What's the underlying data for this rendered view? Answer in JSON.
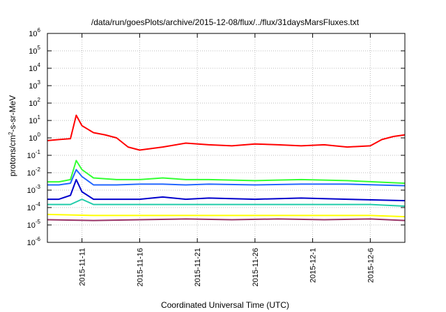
{
  "chart_data": {
    "type": "line",
    "title": "/data/run/goesPlots/archive/2015-12-08/flux/../flux/31daysMarsFluxes.txt",
    "xlabel": "Coordinated Universal Time (UTC)",
    "ylabel": {
      "base": "protons/cm",
      "sup": "2",
      "rest": "-s-sr-MeV"
    },
    "y_scale": "log",
    "ylim": [
      1e-06,
      1000000.0
    ],
    "xlim": [
      "2015-11-08",
      "2015-12-09"
    ],
    "grid": true,
    "y_ticks": [
      {
        "base": "10",
        "exp": "-6"
      },
      {
        "base": "10",
        "exp": "-5"
      },
      {
        "base": "10",
        "exp": "-4"
      },
      {
        "base": "10",
        "exp": "-3"
      },
      {
        "base": "10",
        "exp": "-2"
      },
      {
        "base": "10",
        "exp": "-1"
      },
      {
        "base": "10",
        "exp": "0"
      },
      {
        "base": "10",
        "exp": "1"
      },
      {
        "base": "10",
        "exp": "2"
      },
      {
        "base": "10",
        "exp": "3"
      },
      {
        "base": "10",
        "exp": "4"
      },
      {
        "base": "10",
        "exp": "5"
      },
      {
        "base": "10",
        "exp": "6"
      }
    ],
    "x_ticks": [
      "2015-11-11",
      "2015-11-16",
      "2015-11-21",
      "2015-11-26",
      "2015-12-1",
      "2015-12-6"
    ],
    "series": [
      {
        "color": "#ff0000",
        "x": [
          "2015-11-08",
          "2015-11-09",
          "2015-11-10",
          "2015-11-10 12:00",
          "2015-11-11",
          "2015-11-12",
          "2015-11-13",
          "2015-11-14",
          "2015-11-15",
          "2015-11-16",
          "2015-11-18",
          "2015-11-20",
          "2015-11-22",
          "2015-11-24",
          "2015-11-26",
          "2015-11-28",
          "2015-11-30",
          "2015-12-02",
          "2015-12-04",
          "2015-12-06",
          "2015-12-07",
          "2015-12-08",
          "2015-12-09"
        ],
        "values": [
          0.7,
          0.8,
          0.9,
          20,
          5,
          2,
          1.5,
          1,
          0.3,
          0.2,
          0.3,
          0.5,
          0.4,
          0.35,
          0.45,
          0.4,
          0.35,
          0.4,
          0.3,
          0.35,
          0.8,
          1.2,
          1.5
        ]
      },
      {
        "color": "#33ff33",
        "x": [
          "2015-11-08",
          "2015-11-09",
          "2015-11-10",
          "2015-11-10 12:00",
          "2015-11-11",
          "2015-11-12",
          "2015-11-14",
          "2015-11-16",
          "2015-11-18",
          "2015-11-20",
          "2015-11-22",
          "2015-11-26",
          "2015-11-30",
          "2015-12-04",
          "2015-12-09"
        ],
        "values": [
          0.003,
          0.003,
          0.004,
          0.05,
          0.015,
          0.005,
          0.004,
          0.004,
          0.005,
          0.004,
          0.004,
          0.0035,
          0.004,
          0.0035,
          0.0025
        ]
      },
      {
        "color": "#2266ff",
        "x": [
          "2015-11-08",
          "2015-11-09",
          "2015-11-10",
          "2015-11-10 12:00",
          "2015-11-11",
          "2015-11-12",
          "2015-11-14",
          "2015-11-16",
          "2015-11-18",
          "2015-11-20",
          "2015-11-22",
          "2015-11-26",
          "2015-11-30",
          "2015-12-04",
          "2015-12-09"
        ],
        "values": [
          0.002,
          0.002,
          0.0025,
          0.015,
          0.006,
          0.002,
          0.002,
          0.0022,
          0.0022,
          0.002,
          0.0022,
          0.002,
          0.0022,
          0.0022,
          0.0018
        ]
      },
      {
        "color": "#0000cc",
        "x": [
          "2015-11-08",
          "2015-11-09",
          "2015-11-10",
          "2015-11-10 12:00",
          "2015-11-11",
          "2015-11-12",
          "2015-11-14",
          "2015-11-16",
          "2015-11-18",
          "2015-11-20",
          "2015-11-22",
          "2015-11-26",
          "2015-11-30",
          "2015-12-04",
          "2015-12-09"
        ],
        "values": [
          0.0003,
          0.0003,
          0.0005,
          0.004,
          0.0008,
          0.0003,
          0.0003,
          0.0003,
          0.0004,
          0.0003,
          0.00035,
          0.0003,
          0.00035,
          0.0003,
          0.00025
        ]
      },
      {
        "color": "#22ccaa",
        "x": [
          "2015-11-08",
          "2015-11-10",
          "2015-11-11",
          "2015-11-12",
          "2015-11-16",
          "2015-11-20",
          "2015-11-26",
          "2015-12-01",
          "2015-12-06",
          "2015-12-09"
        ],
        "values": [
          0.00015,
          0.00015,
          0.0003,
          0.00015,
          0.00015,
          0.00015,
          0.00015,
          0.00015,
          0.00015,
          0.00012
        ]
      },
      {
        "color": "#ffff00",
        "x": [
          "2015-11-08",
          "2015-11-12",
          "2015-11-16",
          "2015-11-20",
          "2015-11-24",
          "2015-11-28",
          "2015-12-02",
          "2015-12-06",
          "2015-12-09"
        ],
        "values": [
          4e-05,
          3.5e-05,
          3.5e-05,
          3.5e-05,
          3.5e-05,
          3.5e-05,
          3.5e-05,
          3.5e-05,
          3e-05
        ]
      },
      {
        "color": "#993366",
        "x": [
          "2015-11-08",
          "2015-11-12",
          "2015-11-16",
          "2015-11-20",
          "2015-11-24",
          "2015-11-28",
          "2015-12-02",
          "2015-12-06",
          "2015-12-09"
        ],
        "values": [
          2e-05,
          1.8e-05,
          2e-05,
          2.2e-05,
          2e-05,
          2.2e-05,
          2e-05,
          2.2e-05,
          1.8e-05
        ]
      }
    ]
  }
}
